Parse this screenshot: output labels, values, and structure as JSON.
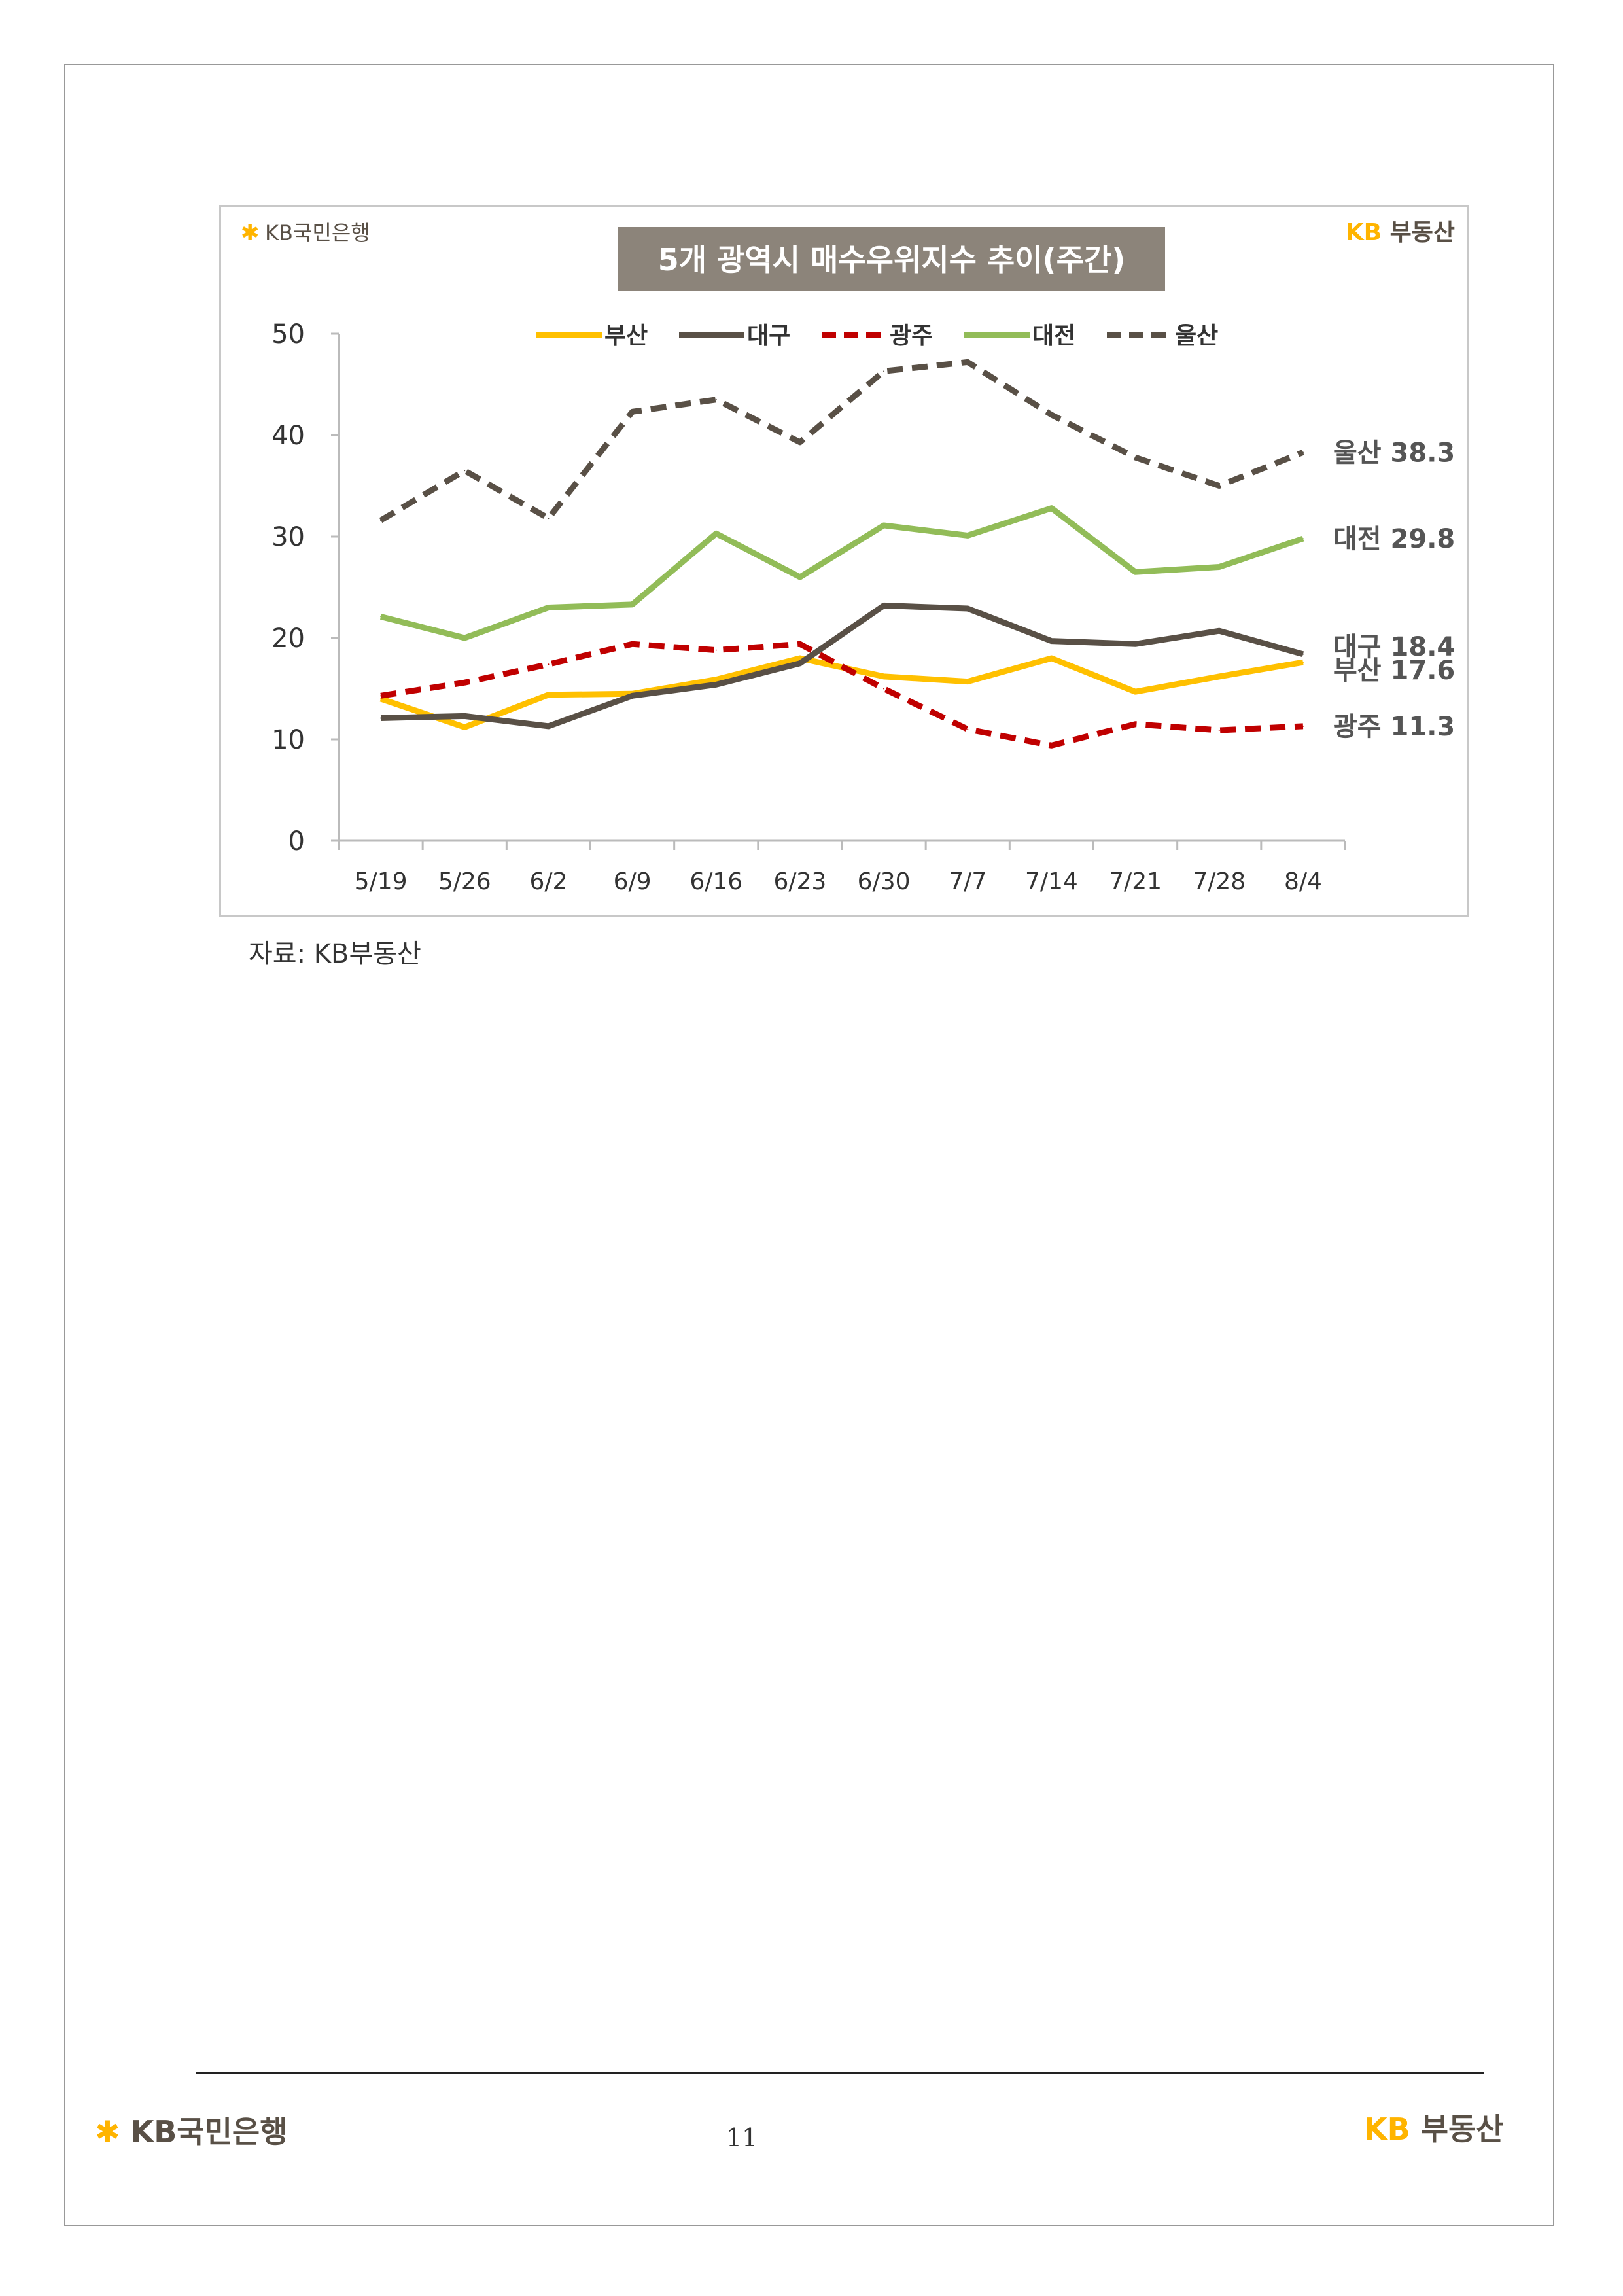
{
  "header": {
    "bank_logo": "KB국민은행",
    "realty_logo": "KB부동산"
  },
  "chart_data": {
    "type": "line",
    "title": "5개 광역시 매수우위지수 추이(주간)",
    "categories": [
      "5/19",
      "5/26",
      "6/2",
      "6/9",
      "6/16",
      "6/23",
      "6/30",
      "7/7",
      "7/14",
      "7/21",
      "7/28",
      "8/4"
    ],
    "ylim": [
      0,
      50
    ],
    "yticks": [
      "0",
      "10",
      "20",
      "30",
      "40",
      "50"
    ],
    "grid": false,
    "legend_placement": "top",
    "series": [
      {
        "name": "부산",
        "color": "#FFC000",
        "dashed": false,
        "values": [
          14.0,
          11.2,
          14.4,
          14.5,
          15.9,
          18.0,
          16.2,
          15.7,
          18.0,
          14.7,
          16.2,
          17.6
        ],
        "end_label": "부산 17.6"
      },
      {
        "name": "대구",
        "color": "#595046",
        "dashed": false,
        "values": [
          12.1,
          12.3,
          11.3,
          14.3,
          15.4,
          17.5,
          23.2,
          22.9,
          19.7,
          19.4,
          20.7,
          18.4
        ],
        "end_label": "대구 18.4"
      },
      {
        "name": "광주",
        "color": "#C00000",
        "dashed": true,
        "values": [
          14.3,
          15.6,
          17.4,
          19.4,
          18.8,
          19.4,
          15.0,
          11.0,
          9.4,
          11.5,
          10.9,
          11.3
        ],
        "end_label": "광주 11.3"
      },
      {
        "name": "대전",
        "color": "#92BC58",
        "dashed": false,
        "values": [
          22.1,
          20.0,
          23.0,
          23.3,
          30.3,
          26.0,
          31.1,
          30.1,
          32.8,
          26.5,
          27.0,
          29.8
        ],
        "end_label": "대전 29.8"
      },
      {
        "name": "울산",
        "color": "#595046",
        "dashed": true,
        "values": [
          31.6,
          36.5,
          31.8,
          42.3,
          43.5,
          39.3,
          46.3,
          47.2,
          42.0,
          37.8,
          35.0,
          38.3
        ],
        "end_label": "울산 38.3"
      }
    ]
  },
  "source": "자료: KB부동산",
  "footer": {
    "bank_logo": "KB국민은행",
    "realty_logo": "KB부동산",
    "page_number": "11"
  }
}
